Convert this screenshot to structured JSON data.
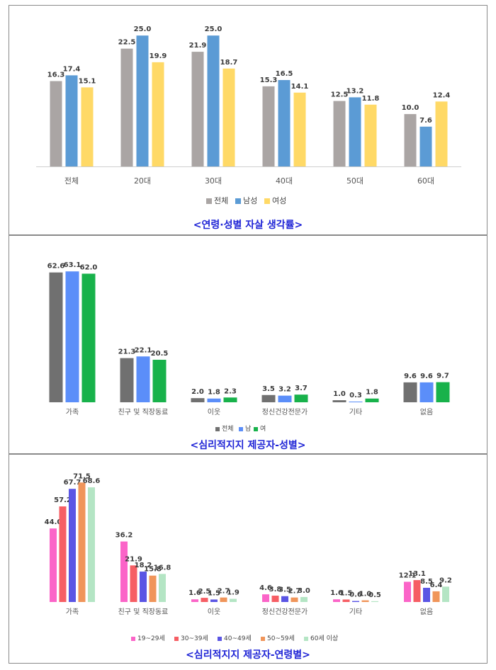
{
  "colors": {
    "c1": {
      "total": "#aaa5a4",
      "male": "#5b9bd5",
      "female": "#ffd966"
    },
    "c2": {
      "total": "#707070",
      "male": "#5b8ef9",
      "female": "#18b24b"
    },
    "c3": [
      "#fb64c8",
      "#f65e64",
      "#5a55e4",
      "#f0955a",
      "#b4e5c4"
    ]
  },
  "chart_data": [
    {
      "type": "bar",
      "title": "<연령·성별 자살 생각률>",
      "categories": [
        "전체",
        "20대",
        "30대",
        "40대",
        "50대",
        "60대"
      ],
      "series": [
        {
          "name": "전체",
          "values": [
            16.3,
            22.5,
            21.9,
            15.3,
            12.5,
            10.0
          ]
        },
        {
          "name": "남성",
          "values": [
            17.4,
            25.0,
            25.0,
            16.5,
            13.2,
            7.6
          ]
        },
        {
          "name": "여성",
          "values": [
            15.1,
            19.9,
            18.7,
            14.1,
            11.8,
            12.4
          ]
        }
      ],
      "ylim": [
        0,
        28
      ],
      "legend": "bottom",
      "grid": false
    },
    {
      "type": "bar",
      "title": "<심리적지지 제공자-성별>",
      "categories": [
        "가족",
        "친구 및 직장동료",
        "이웃",
        "정신건강전문가",
        "기타",
        "없음"
      ],
      "series": [
        {
          "name": "전체",
          "values": [
            62.6,
            21.3,
            2.0,
            3.5,
            1.0,
            9.6
          ]
        },
        {
          "name": "남",
          "values": [
            63.1,
            22.1,
            1.8,
            3.2,
            0.3,
            9.6
          ]
        },
        {
          "name": "여",
          "values": [
            62.0,
            20.5,
            2.3,
            3.7,
            1.8,
            9.7
          ]
        }
      ],
      "ylim": [
        0,
        70
      ],
      "legend": "bottom",
      "grid": false
    },
    {
      "type": "bar",
      "title": "<심리적지지 제공자-연령별>",
      "categories": [
        "가족",
        "친구 및 직장동료",
        "이웃",
        "정신건강전문가",
        "기타",
        "없음"
      ],
      "series": [
        {
          "name": "19~29세",
          "values": [
            44.0,
            36.2,
            1.6,
            4.6,
            1.6,
            12.1
          ]
        },
        {
          "name": "30~39세",
          "values": [
            57.2,
            21.9,
            2.5,
            3.8,
            1.5,
            13.1
          ]
        },
        {
          "name": "40~49세",
          "values": [
            67.7,
            18.2,
            1.5,
            3.5,
            0.6,
            8.5
          ]
        },
        {
          "name": "50~59세",
          "values": [
            71.5,
            15.8,
            2.7,
            2.7,
            1.0,
            6.4
          ]
        },
        {
          "name": "60세 이상",
          "values": [
            68.6,
            16.8,
            1.9,
            3.0,
            0.5,
            9.2
          ]
        }
      ],
      "ylim": [
        0,
        75
      ],
      "legend": "bottom",
      "grid": false
    }
  ]
}
